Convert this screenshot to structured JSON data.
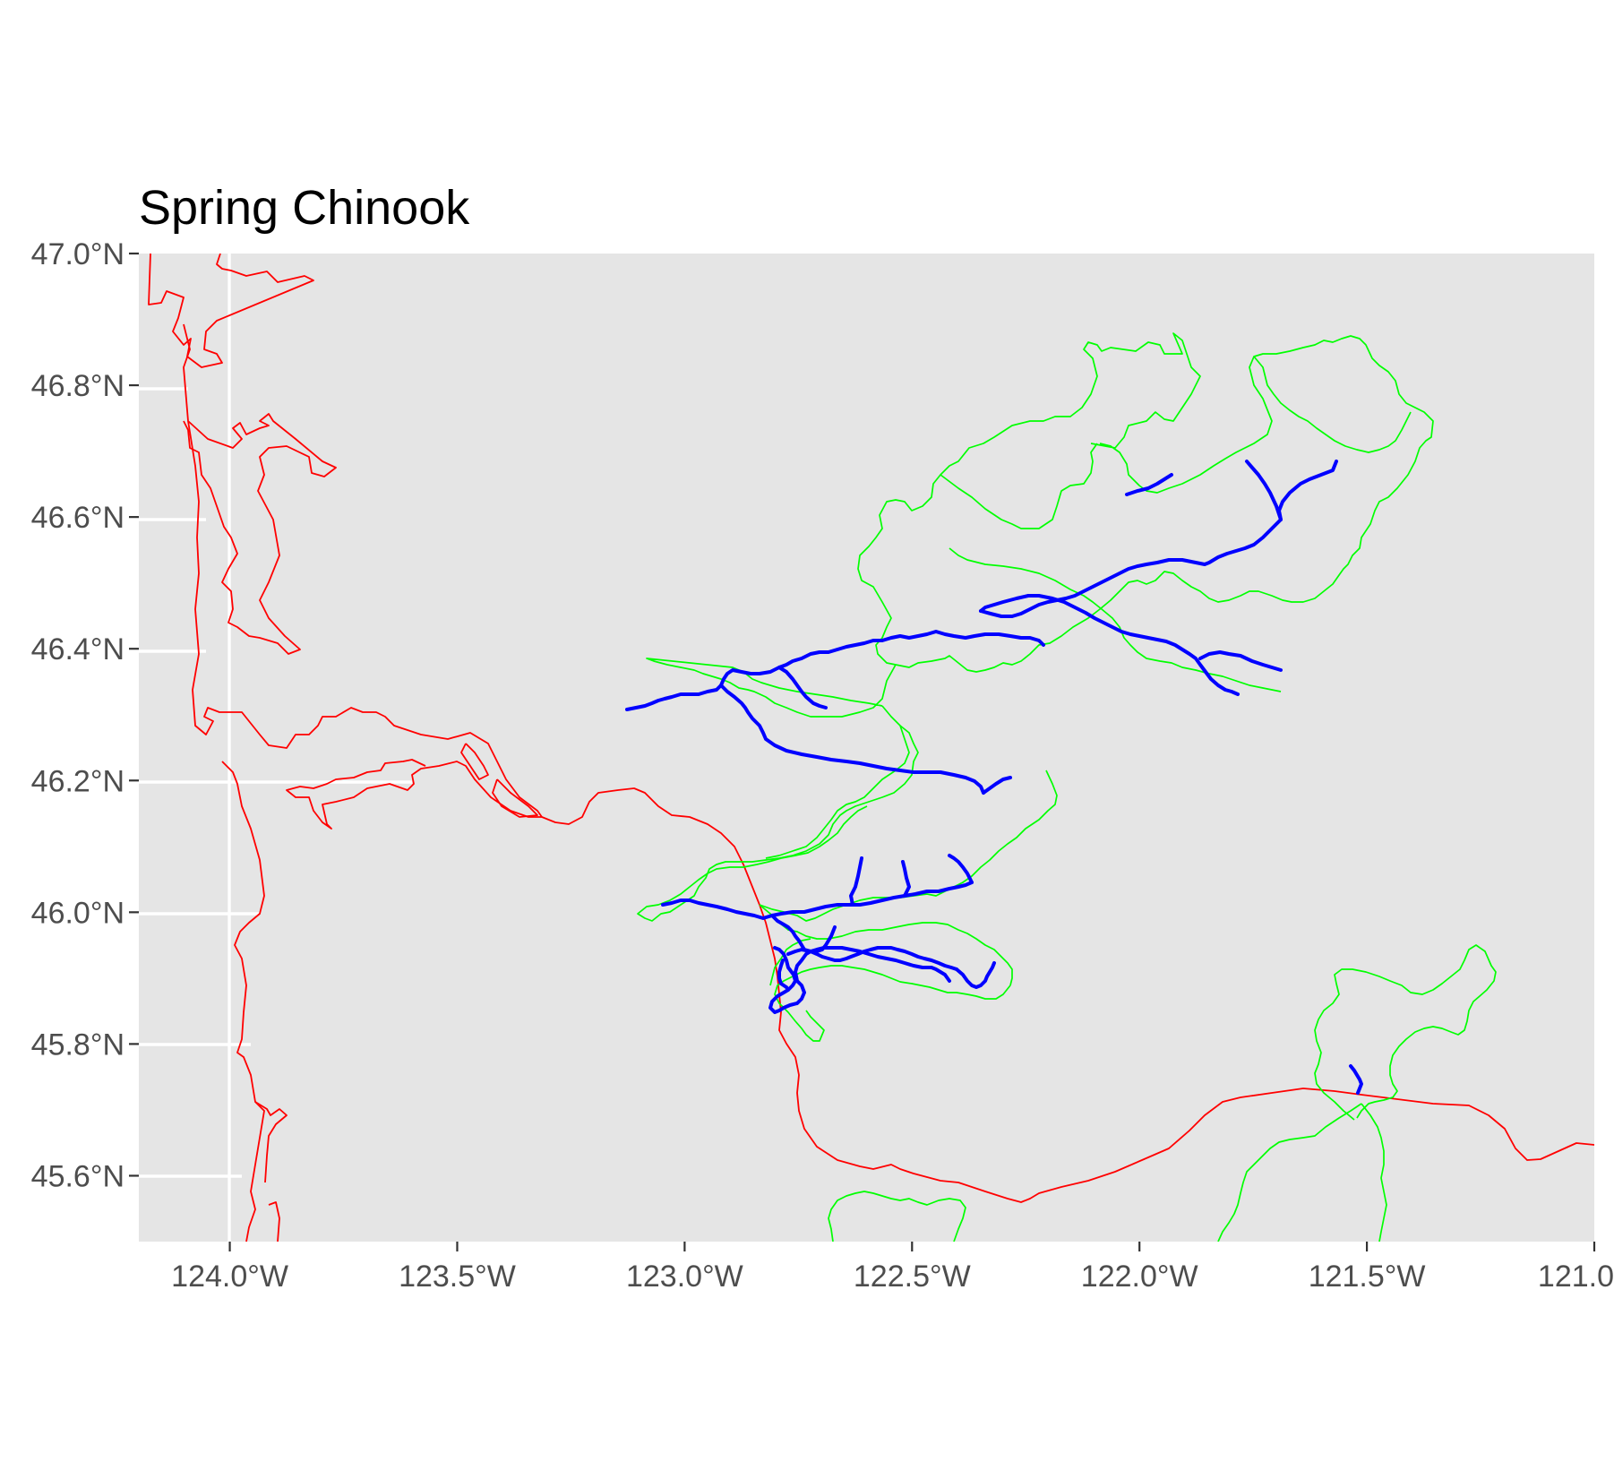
{
  "map": {
    "title": "Spring Chinook",
    "x_ticks": [
      {
        "value": -124.0,
        "label": "124.0°W"
      },
      {
        "value": -123.5,
        "label": "123.5°W"
      },
      {
        "value": -123.0,
        "label": "123.0°W"
      },
      {
        "value": -122.5,
        "label": "122.5°W"
      },
      {
        "value": -122.0,
        "label": "122.0°W"
      },
      {
        "value": -121.5,
        "label": "121.5°W"
      },
      {
        "value": -121.0,
        "label": "121.0"
      }
    ],
    "y_ticks": [
      {
        "value": 47.0,
        "label": "47.0°N"
      },
      {
        "value": 46.8,
        "label": "46.8°N"
      },
      {
        "value": 46.6,
        "label": "46.6°N"
      },
      {
        "value": 46.4,
        "label": "46.4°N"
      },
      {
        "value": 46.2,
        "label": "46.2°N"
      },
      {
        "value": 46.0,
        "label": "46.0°N"
      },
      {
        "value": 45.8,
        "label": "45.8°N"
      },
      {
        "value": 45.6,
        "label": "45.6°N"
      }
    ],
    "xlim": [
      -124.2,
      -121.0
    ],
    "ylim": [
      45.5,
      47.0
    ],
    "colors": {
      "panel": "#e5e5e5",
      "grid": "#ffffff",
      "coastline": "#ff0000",
      "basin_outline": "#00ff00",
      "river": "#0000ff"
    }
  }
}
